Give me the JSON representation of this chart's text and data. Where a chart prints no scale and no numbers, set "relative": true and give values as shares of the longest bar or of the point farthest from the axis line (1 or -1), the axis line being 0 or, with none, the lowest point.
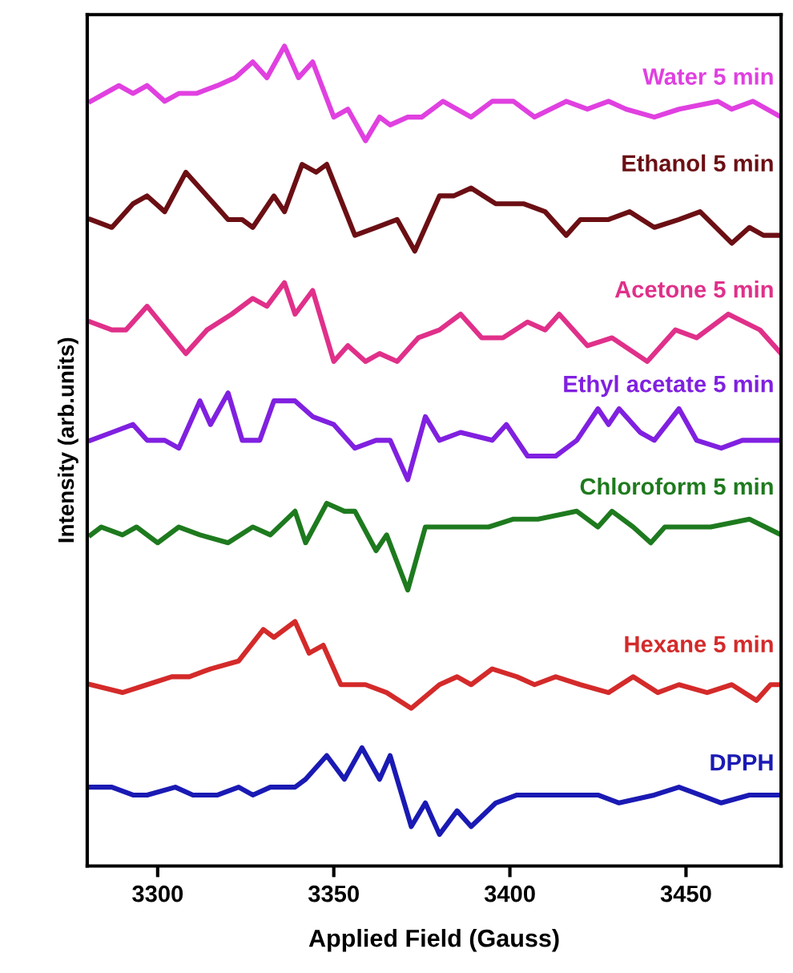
{
  "chart_data": {
    "type": "line",
    "relative": true,
    "xlabel": "Applied Field (Gauss)",
    "ylabel": "Intensity (arb.units)",
    "xlim": [
      3280,
      3477
    ],
    "xticks": [
      3300,
      3350,
      3400,
      3450
    ],
    "grid": false,
    "legend": false,
    "series": [
      {
        "name": "Water 5 min",
        "color": "#e040e0",
        "x": [
          3281,
          3289,
          3293,
          3297,
          3302,
          3306,
          3311,
          3317,
          3322,
          3327,
          3331,
          3336,
          3340,
          3344,
          3350,
          3354,
          3359,
          3363,
          3366,
          3371,
          3375,
          3381,
          3389,
          3395,
          3401,
          3407,
          3416,
          3422,
          3428,
          3433,
          3441,
          3448,
          3459,
          3463,
          3469,
          3477
        ],
        "values": [
          0.93,
          0.95,
          0.94,
          0.95,
          0.93,
          0.94,
          0.94,
          0.95,
          0.96,
          0.98,
          0.96,
          1.0,
          0.96,
          0.98,
          0.91,
          0.92,
          0.88,
          0.91,
          0.9,
          0.91,
          0.91,
          0.93,
          0.91,
          0.93,
          0.93,
          0.91,
          0.93,
          0.92,
          0.93,
          0.92,
          0.91,
          0.92,
          0.93,
          0.92,
          0.93,
          0.91
        ]
      },
      {
        "name": "Ethanol 5 min",
        "color": "#6b0f14",
        "x": [
          3281,
          3287,
          3293,
          3297,
          3302,
          3308,
          3314,
          3320,
          3324,
          3327,
          3333,
          3336,
          3341,
          3345,
          3348,
          3356,
          3362,
          3368,
          3373,
          3380,
          3384,
          3389,
          3396,
          3404,
          3410,
          3416,
          3420,
          3428,
          3434,
          3441,
          3448,
          3454,
          3463,
          3468,
          3472,
          3477
        ],
        "values": [
          0.78,
          0.77,
          0.8,
          0.81,
          0.79,
          0.84,
          0.81,
          0.78,
          0.78,
          0.77,
          0.81,
          0.79,
          0.85,
          0.84,
          0.85,
          0.76,
          0.77,
          0.78,
          0.74,
          0.81,
          0.81,
          0.82,
          0.8,
          0.8,
          0.79,
          0.76,
          0.78,
          0.78,
          0.79,
          0.77,
          0.78,
          0.79,
          0.75,
          0.77,
          0.76,
          0.76
        ]
      },
      {
        "name": "Acetone 5 min",
        "color": "#e0308a",
        "x": [
          3281,
          3287,
          3291,
          3297,
          3308,
          3314,
          3321,
          3327,
          3331,
          3336,
          3339,
          3344,
          3350,
          3354,
          3359,
          3363,
          3368,
          3374,
          3380,
          3386,
          3392,
          3398,
          3405,
          3410,
          3414,
          3422,
          3429,
          3439,
          3447,
          3453,
          3462,
          3471,
          3477
        ],
        "values": [
          0.65,
          0.64,
          0.64,
          0.67,
          0.61,
          0.64,
          0.66,
          0.68,
          0.67,
          0.7,
          0.66,
          0.69,
          0.6,
          0.62,
          0.6,
          0.61,
          0.6,
          0.63,
          0.64,
          0.66,
          0.63,
          0.63,
          0.65,
          0.64,
          0.66,
          0.62,
          0.63,
          0.6,
          0.64,
          0.63,
          0.66,
          0.64,
          0.61
        ]
      },
      {
        "name": "Ethyl acetate 5 min",
        "color": "#8020e0",
        "x": [
          3281,
          3287,
          3293,
          3297,
          3302,
          3306,
          3312,
          3315,
          3320,
          3324,
          3329,
          3333,
          3339,
          3344,
          3350,
          3356,
          3362,
          3366,
          3371,
          3376,
          3380,
          3386,
          3395,
          3399,
          3405,
          3413,
          3419,
          3425,
          3428,
          3431,
          3437,
          3441,
          3448,
          3453,
          3460,
          3466,
          3477
        ],
        "values": [
          0.5,
          0.51,
          0.52,
          0.5,
          0.5,
          0.49,
          0.55,
          0.52,
          0.56,
          0.5,
          0.5,
          0.55,
          0.55,
          0.53,
          0.52,
          0.49,
          0.5,
          0.5,
          0.45,
          0.53,
          0.5,
          0.51,
          0.5,
          0.52,
          0.48,
          0.48,
          0.5,
          0.54,
          0.52,
          0.54,
          0.51,
          0.5,
          0.54,
          0.5,
          0.49,
          0.5,
          0.5
        ]
      },
      {
        "name": "Chloroform 5 min",
        "color": "#1e7a1e",
        "x": [
          3281,
          3284,
          3290,
          3294,
          3300,
          3306,
          3312,
          3320,
          3327,
          3332,
          3339,
          3342,
          3348,
          3353,
          3356,
          3362,
          3365,
          3371,
          3376,
          3383,
          3389,
          3394,
          3401,
          3408,
          3419,
          3425,
          3429,
          3435,
          3440,
          3444,
          3450,
          3457,
          3468,
          3477
        ],
        "values": [
          0.38,
          0.39,
          0.38,
          0.39,
          0.37,
          0.39,
          0.38,
          0.37,
          0.39,
          0.38,
          0.41,
          0.37,
          0.42,
          0.41,
          0.41,
          0.36,
          0.38,
          0.31,
          0.39,
          0.39,
          0.39,
          0.39,
          0.4,
          0.4,
          0.41,
          0.39,
          0.41,
          0.39,
          0.37,
          0.39,
          0.39,
          0.39,
          0.4,
          0.38
        ]
      },
      {
        "name": "Hexane 5 min",
        "color": "#d42a2a",
        "x": [
          3281,
          3290,
          3297,
          3304,
          3309,
          3315,
          3323,
          3330,
          3333,
          3339,
          3343,
          3347,
          3352,
          3359,
          3365,
          3372,
          3380,
          3385,
          3389,
          3395,
          3402,
          3407,
          3413,
          3420,
          3428,
          3435,
          3442,
          3448,
          3456,
          3463,
          3470,
          3474,
          3477
        ],
        "values": [
          0.19,
          0.18,
          0.19,
          0.2,
          0.2,
          0.21,
          0.22,
          0.26,
          0.25,
          0.27,
          0.23,
          0.24,
          0.19,
          0.19,
          0.18,
          0.16,
          0.19,
          0.2,
          0.19,
          0.21,
          0.2,
          0.19,
          0.2,
          0.19,
          0.18,
          0.2,
          0.18,
          0.19,
          0.18,
          0.19,
          0.17,
          0.19,
          0.19
        ]
      },
      {
        "name": "DPPH",
        "color": "#1a1ab4",
        "x": [
          3281,
          3287,
          3293,
          3297,
          3305,
          3310,
          3317,
          3323,
          3327,
          3332,
          3339,
          3342,
          3348,
          3353,
          3358,
          3363,
          3366,
          3372,
          3376,
          3380,
          3385,
          3389,
          3396,
          3402,
          3408,
          3417,
          3425,
          3431,
          3441,
          3448,
          3454,
          3460,
          3468,
          3477
        ],
        "values": [
          0.06,
          0.06,
          0.05,
          0.05,
          0.06,
          0.05,
          0.05,
          0.06,
          0.05,
          0.06,
          0.06,
          0.07,
          0.1,
          0.07,
          0.11,
          0.07,
          0.1,
          0.01,
          0.04,
          0.0,
          0.03,
          0.01,
          0.04,
          0.05,
          0.05,
          0.05,
          0.05,
          0.04,
          0.05,
          0.06,
          0.05,
          0.04,
          0.05,
          0.05
        ]
      }
    ]
  }
}
